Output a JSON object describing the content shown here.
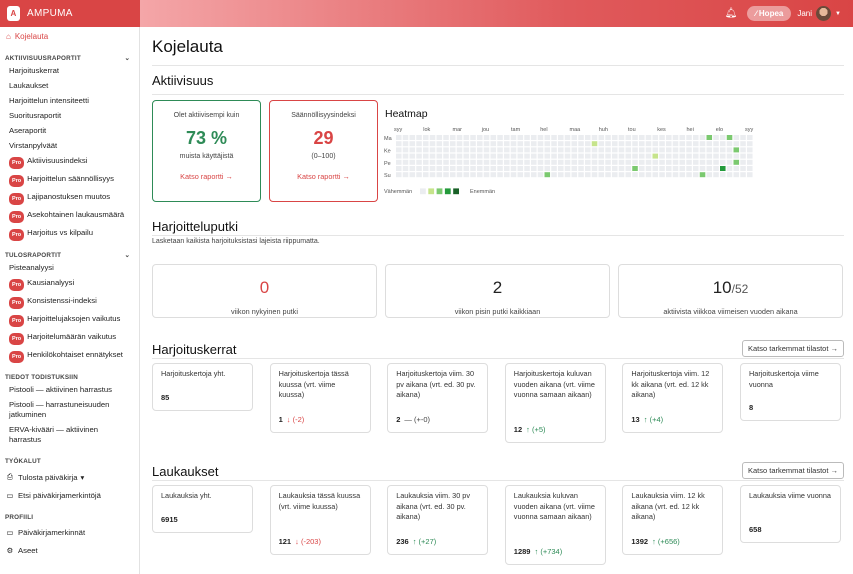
{
  "brand": {
    "name": "AMPUMA",
    "logo_letter": "A"
  },
  "topbar": {
    "tier": "Hopea",
    "user": "Jani",
    "tier_icon": "∕"
  },
  "sidebar": {
    "active": "Kojelauta",
    "sections": [
      {
        "title": "AKTIIVISUUSRAPORTIT",
        "items": [
          {
            "label": "Harjoituskerrat",
            "pro": false
          },
          {
            "label": "Laukaukset",
            "pro": false
          },
          {
            "label": "Harjoittelun intensiteetti",
            "pro": false
          },
          {
            "label": "Suoritusraportit",
            "pro": false
          },
          {
            "label": "Aseraportit",
            "pro": false
          },
          {
            "label": "Virstanpylväät",
            "pro": false
          },
          {
            "label": "Aktiivisuusindeksi",
            "pro": true
          },
          {
            "label": "Harjoittelun säännöllisyys",
            "pro": true
          },
          {
            "label": "Lajipanostuksen muutos",
            "pro": true
          },
          {
            "label": "Asekohtainen laukausmäärä",
            "pro": true
          },
          {
            "label": "Harjoitus vs kilpailu",
            "pro": true
          }
        ]
      },
      {
        "title": "TULOSRAPORTIT",
        "items": [
          {
            "label": "Pisteanalyysi",
            "pro": false
          },
          {
            "label": "Kausianalyysi",
            "pro": true
          },
          {
            "label": "Konsistenssi-indeksi",
            "pro": true
          },
          {
            "label": "Harjoittelujaksojen vaikutus",
            "pro": true
          },
          {
            "label": "Harjoitelumäärän vaikutus",
            "pro": true
          },
          {
            "label": "Henkilökohtaiset ennätykset",
            "pro": true
          }
        ]
      },
      {
        "title": "TIEDOT TODISTUKSIIN",
        "items": [
          {
            "label": "Pistooli — aktiivinen harrastus",
            "pro": false
          },
          {
            "label": "Pistooli — harrastuneisuuden jatkuminen",
            "pro": false
          },
          {
            "label": "ERVA-kivääri — aktiivinen harrastus",
            "pro": false
          }
        ]
      }
    ],
    "tools_title": "TYÖKALUT",
    "tools": [
      {
        "label": "Tulosta päiväkirja",
        "icon": "printer-icon"
      },
      {
        "label": "Etsi päiväkirjamerkintöjä",
        "icon": "book-icon"
      }
    ],
    "profile_title": "PROFIILI",
    "profile": [
      {
        "label": "Päiväkirjamerkinnät",
        "icon": "book-icon"
      },
      {
        "label": "Aseet",
        "icon": "gear-icon"
      }
    ]
  },
  "page": {
    "title": "Kojelauta"
  },
  "activity": {
    "title": "Aktiivisuus",
    "card1": {
      "top": "Olet aktiivisempi kuin",
      "value": "73 %",
      "sub": "muista käyttäjistä",
      "link": "Katso raportti →",
      "color": "#2e8b57"
    },
    "card2": {
      "top": "Säännöllisyysindeksi",
      "value": "29",
      "sub": "(0–100)",
      "link": "Katso raportti →",
      "color": "#d94545"
    }
  },
  "heatmap": {
    "title": "Heatmap",
    "months": [
      "syy",
      "lok",
      "mar",
      "jou",
      "tam",
      "hel",
      "maa",
      "huh",
      "tou",
      "kes",
      "hei",
      "elo",
      "syy"
    ],
    "days": [
      "Ma",
      "Ke",
      "Pe",
      "Su"
    ],
    "legend_less": "Vähemmän",
    "legend_more": "Enemmän",
    "colors": [
      "#ebedf0",
      "#c6e48b",
      "#7bc96f",
      "#239a3b",
      "#196127"
    ],
    "active_cells": [
      [
        46,
        0,
        2
      ],
      [
        49,
        0,
        2
      ],
      [
        50,
        2,
        2
      ],
      [
        50,
        4,
        2
      ],
      [
        48,
        5,
        3
      ],
      [
        35,
        5,
        2
      ],
      [
        22,
        6,
        2
      ],
      [
        45,
        6,
        2
      ],
      [
        29,
        1,
        1
      ],
      [
        38,
        3,
        1
      ]
    ]
  },
  "streak": {
    "title": "Harjoitteluputki",
    "subtitle": "Lasketaan kaikista harjoituksistasi lajeista riippumatta.",
    "cards": [
      {
        "value": "0",
        "suffix": "",
        "label": "viikon nykyinen putki",
        "color": "#d94545"
      },
      {
        "value": "2",
        "suffix": "",
        "label": "viikon pisin putki kaikkiaan",
        "color": "#222"
      },
      {
        "value": "10",
        "suffix": "/52",
        "label": "aktiivista viikkoa viimeisen vuoden aikana",
        "color": "#222"
      }
    ]
  },
  "sessions": {
    "title": "Harjoituskerrat",
    "more": "Katso tarkemmat tilastot →",
    "cards": [
      {
        "label": "Harjoituskertoja yht.",
        "value": "85",
        "delta": "",
        "dir": ""
      },
      {
        "label": "Harjoituskertoja tässä kuussa (vrt. viime kuussa)",
        "value": "1",
        "delta": "↓ (-2)",
        "dir": "dn"
      },
      {
        "label": "Harjoituskertoja viim. 30 pv aikana (vrt. ed. 30 pv. aikana)",
        "value": "2",
        "delta": "— (+-0)",
        "dir": "nu"
      },
      {
        "label": "Harjoituskertoja kuluvan vuoden aikana (vrt. viime vuonna samaan aikaan)",
        "value": "12",
        "delta": "↑ (+5)",
        "dir": "up"
      },
      {
        "label": "Harjoituskertoja viim. 12 kk aikana (vrt. ed. 12 kk aikana)",
        "value": "13",
        "delta": "↑ (+4)",
        "dir": "up"
      },
      {
        "label": "Harjoituskertoja viime vuonna",
        "value": "8",
        "delta": "",
        "dir": ""
      }
    ]
  },
  "shots": {
    "title": "Laukaukset",
    "more": "Katso tarkemmat tilastot →",
    "cards": [
      {
        "label": "Laukauksia yht.",
        "value": "6915",
        "delta": "",
        "dir": ""
      },
      {
        "label": "Laukauksia tässä kuussa (vrt. viime kuussa)",
        "value": "121",
        "delta": "↓ (-203)",
        "dir": "dn"
      },
      {
        "label": "Laukauksia viim. 30 pv aikana (vrt. ed. 30 pv. aikana)",
        "value": "236",
        "delta": "↑ (+27)",
        "dir": "up"
      },
      {
        "label": "Laukauksia kuluvan vuoden aikana (vrt. viime vuonna samaan aikaan)",
        "value": "1289",
        "delta": "↑ (+734)",
        "dir": "up"
      },
      {
        "label": "Laukauksia viim. 12 kk aikana (vrt. ed. 12 kk aikana)",
        "value": "1392",
        "delta": "↑ (+656)",
        "dir": "up"
      },
      {
        "label": "Laukauksia viime vuonna",
        "value": "658",
        "delta": "",
        "dir": ""
      }
    ]
  }
}
